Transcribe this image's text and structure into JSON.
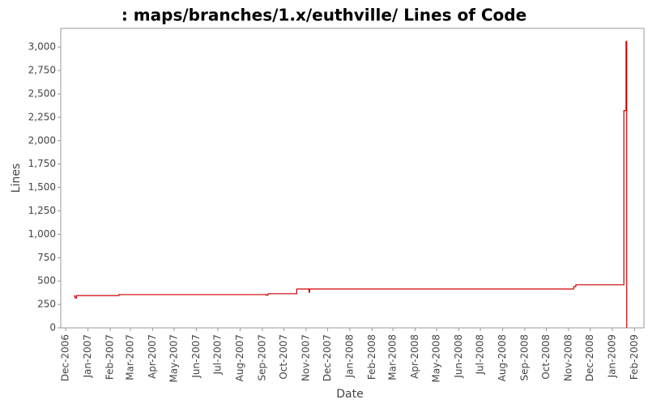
{
  "chart_data": {
    "type": "line",
    "step": "post",
    "title": ": maps/branches/1.x/euthville/ Lines of Code",
    "x_label": "Date",
    "y_label": "Lines",
    "x": [
      "2006-12-12",
      "2006-12-14",
      "2006-12-16",
      "2007-02-13",
      "2007-09-06",
      "2007-09-09",
      "2007-10-19",
      "2007-11-05",
      "2007-11-06",
      "2008-11-08",
      "2008-11-11",
      "2009-01-17",
      "2009-01-20",
      "2009-01-21"
    ],
    "series": [
      {
        "name": "Lines",
        "color": "#cc0000",
        "values": [
          340,
          320,
          345,
          355,
          350,
          365,
          415,
          380,
          415,
          440,
          460,
          2320,
          3060,
          0
        ]
      }
    ],
    "xlim": [
      "2006-11-24",
      "2009-02-14"
    ],
    "xticks": [
      {
        "value": "2006-12-01",
        "label": "Dec-2006"
      },
      {
        "value": "2007-01-01",
        "label": "Jan-2007"
      },
      {
        "value": "2007-02-01",
        "label": "Feb-2007"
      },
      {
        "value": "2007-03-01",
        "label": "Mar-2007"
      },
      {
        "value": "2007-04-01",
        "label": "Apr-2007"
      },
      {
        "value": "2007-05-01",
        "label": "May-2007"
      },
      {
        "value": "2007-06-01",
        "label": "Jun-2007"
      },
      {
        "value": "2007-07-01",
        "label": "Jul-2007"
      },
      {
        "value": "2007-08-01",
        "label": "Aug-2007"
      },
      {
        "value": "2007-09-01",
        "label": "Sep-2007"
      },
      {
        "value": "2007-10-01",
        "label": "Oct-2007"
      },
      {
        "value": "2007-11-01",
        "label": "Nov-2007"
      },
      {
        "value": "2007-12-01",
        "label": "Dec-2007"
      },
      {
        "value": "2008-01-01",
        "label": "Jan-2008"
      },
      {
        "value": "2008-02-01",
        "label": "Feb-2008"
      },
      {
        "value": "2008-03-01",
        "label": "Mar-2008"
      },
      {
        "value": "2008-04-01",
        "label": "Apr-2008"
      },
      {
        "value": "2008-05-01",
        "label": "May-2008"
      },
      {
        "value": "2008-06-01",
        "label": "Jun-2008"
      },
      {
        "value": "2008-07-01",
        "label": "Jul-2008"
      },
      {
        "value": "2008-08-01",
        "label": "Aug-2008"
      },
      {
        "value": "2008-09-01",
        "label": "Sep-2008"
      },
      {
        "value": "2008-10-01",
        "label": "Oct-2008"
      },
      {
        "value": "2008-11-01",
        "label": "Nov-2008"
      },
      {
        "value": "2008-12-01",
        "label": "Dec-2008"
      },
      {
        "value": "2009-01-01",
        "label": "Jan-2009"
      },
      {
        "value": "2009-02-01",
        "label": "Feb-2009"
      }
    ],
    "ylim": [
      0,
      3200
    ],
    "yticks": [
      0,
      250,
      {
        "value": 500,
        "label": "500"
      },
      750,
      {
        "value": 1000,
        "label": "1,000"
      },
      {
        "value": 1250,
        "label": "1,250"
      },
      {
        "value": 1500,
        "label": "1,500"
      },
      {
        "value": 1750,
        "label": "1,750"
      },
      {
        "value": 2000,
        "label": "2,000"
      },
      {
        "value": 2250,
        "label": "2,250"
      },
      {
        "value": 2500,
        "label": "2,500"
      },
      {
        "value": 2750,
        "label": "2,750"
      },
      {
        "value": 3000,
        "label": "3,000"
      }
    ],
    "grid": false
  }
}
